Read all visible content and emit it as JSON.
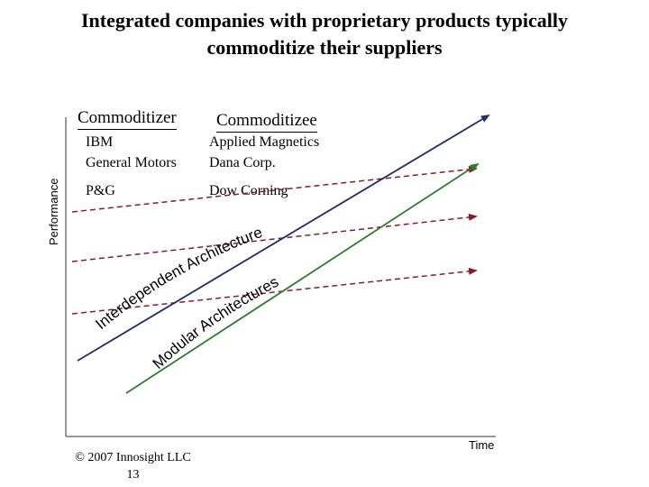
{
  "title_line1": "Integrated companies with proprietary products typically",
  "title_line2": "commoditize their suppliers",
  "columns": {
    "commoditizer": {
      "header": "Commoditizer",
      "companies": [
        "IBM",
        "General Motors",
        "P&G"
      ]
    },
    "commoditizee": {
      "header": "Commoditizee",
      "companies": [
        "Applied Magnetics",
        "Dana Corp.",
        "Dow Corning"
      ]
    }
  },
  "axes": {
    "y_label": "Performance",
    "x_label": "Time"
  },
  "curves": {
    "interdependent_label": "Interdependent Architectures",
    "modular_label": "Modular Architectures"
  },
  "colors": {
    "interdependent_line": "#1f2d6b",
    "modular_line": "#2e7d2e",
    "dashed_lines": "#8b1a2b"
  },
  "footer": {
    "copyright": "© 2007 Innosight LLC",
    "page_number": "13"
  }
}
